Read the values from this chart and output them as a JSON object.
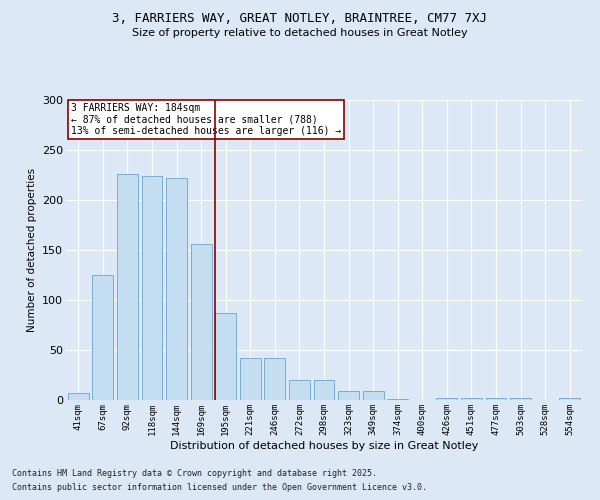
{
  "title1": "3, FARRIERS WAY, GREAT NOTLEY, BRAINTREE, CM77 7XJ",
  "title2": "Size of property relative to detached houses in Great Notley",
  "xlabel": "Distribution of detached houses by size in Great Notley",
  "ylabel": "Number of detached properties",
  "categories": [
    "41sqm",
    "67sqm",
    "92sqm",
    "118sqm",
    "144sqm",
    "169sqm",
    "195sqm",
    "221sqm",
    "246sqm",
    "272sqm",
    "298sqm",
    "323sqm",
    "349sqm",
    "374sqm",
    "400sqm",
    "426sqm",
    "451sqm",
    "477sqm",
    "503sqm",
    "528sqm",
    "554sqm"
  ],
  "values": [
    7,
    125,
    226,
    224,
    222,
    156,
    87,
    42,
    42,
    20,
    20,
    9,
    9,
    1,
    0,
    2,
    2,
    2,
    2,
    0,
    2
  ],
  "bar_color": "#c5ddf0",
  "bar_edge_color": "#7aadd4",
  "vline_color": "#8b0000",
  "vline_x": 5.55,
  "annotation_text": "3 FARRIERS WAY: 184sqm\n← 87% of detached houses are smaller (788)\n13% of semi-detached houses are larger (116) →",
  "annotation_box_color": "white",
  "annotation_box_edge": "#8b0000",
  "bg_color": "#dce8f5",
  "grid_color": "white",
  "footer1": "Contains HM Land Registry data © Crown copyright and database right 2025.",
  "footer2": "Contains public sector information licensed under the Open Government Licence v3.0.",
  "ylim": [
    0,
    300
  ],
  "yticks": [
    0,
    50,
    100,
    150,
    200,
    250,
    300
  ]
}
